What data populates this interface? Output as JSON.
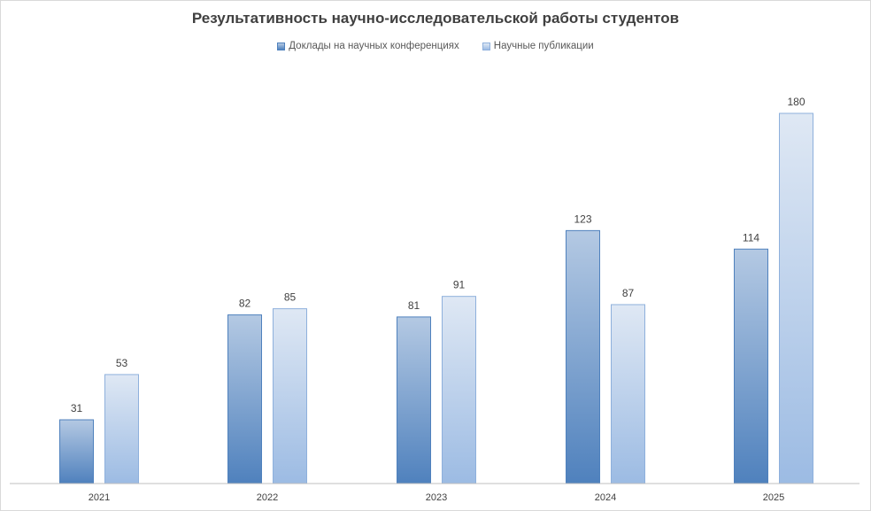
{
  "chart_data": {
    "type": "bar",
    "title": "Результативность научно-исследовательской работы студентов",
    "legend_position": "top",
    "grid": false,
    "categories": [
      "2021",
      "2022",
      "2023",
      "2024",
      "2025"
    ],
    "series": [
      {
        "name": "Доклады на научных конференциях",
        "values": [
          31,
          82,
          81,
          123,
          114
        ],
        "color_top": "#b4c9e3",
        "color_bottom": "#4f81bd",
        "stroke": "#4f81bd"
      },
      {
        "name": "Научные публикации",
        "values": [
          53,
          85,
          91,
          87,
          180
        ],
        "color_top": "#dfe8f4",
        "color_bottom": "#9cbbe3",
        "stroke": "#8eb0dc"
      }
    ],
    "ylim": [
      0,
      180
    ]
  }
}
